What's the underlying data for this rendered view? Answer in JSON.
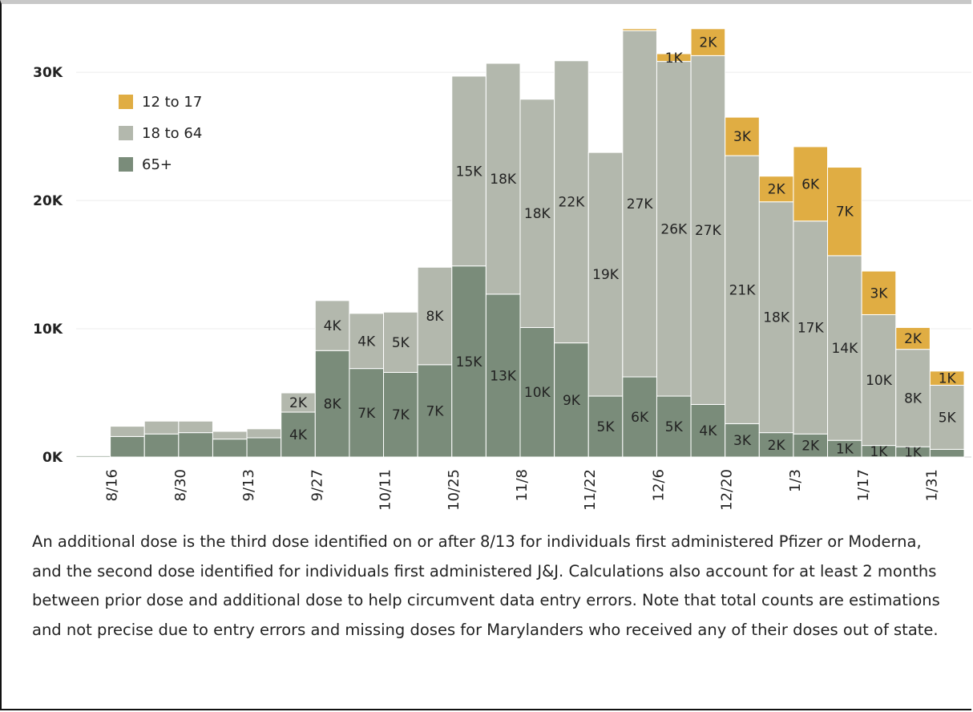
{
  "chart_data": {
    "type": "bar",
    "stacked": true,
    "categories": [
      null,
      "8/16",
      null,
      "8/30",
      null,
      "9/13",
      null,
      "9/27",
      null,
      "10/11",
      null,
      "10/25",
      null,
      "11/8",
      null,
      "11/22",
      null,
      "12/6",
      null,
      "12/20",
      null,
      "1/3",
      null,
      "1/17",
      null,
      "1/31"
    ],
    "series": [
      {
        "name": "12 to 17",
        "color": "#e0ad43",
        "values": [
          null,
          null,
          null,
          null,
          null,
          null,
          null,
          null,
          null,
          null,
          null,
          null,
          null,
          null,
          null,
          null,
          150,
          600,
          2100,
          3000,
          2000,
          5800,
          6900,
          3400,
          1700,
          1100
        ],
        "value_labels": [
          null,
          null,
          null,
          null,
          null,
          null,
          null,
          null,
          null,
          null,
          null,
          null,
          null,
          null,
          null,
          null,
          null,
          "1K",
          "2K",
          "3K",
          "2K",
          "6K",
          "7K",
          "3K",
          "2K",
          "1K"
        ]
      },
      {
        "name": "18 to 64",
        "color": "#b3b8ad",
        "values": [
          null,
          800,
          1000,
          900,
          600,
          700,
          1500,
          3900,
          4300,
          4700,
          7600,
          14800,
          18000,
          17800,
          22000,
          19000,
          27000,
          26100,
          27200,
          20900,
          18000,
          16600,
          14400,
          10200,
          7600,
          5000
        ],
        "value_labels": [
          null,
          null,
          null,
          null,
          null,
          null,
          "2K",
          "4K",
          "4K",
          "5K",
          "8K",
          "15K",
          "18K",
          "18K",
          "22K",
          "19K",
          "27K",
          "26K",
          "27K",
          "21K",
          "18K",
          "17K",
          "14K",
          "10K",
          "8K",
          "5K"
        ]
      },
      {
        "name": "65+",
        "color": "#7a8c7a",
        "values": [
          100,
          1600,
          1800,
          1900,
          1400,
          1500,
          3500,
          8300,
          6900,
          6600,
          7200,
          14900,
          12700,
          10100,
          8900,
          4750,
          6250,
          4750,
          4100,
          2600,
          1900,
          1800,
          1300,
          900,
          800,
          600
        ],
        "value_labels": [
          null,
          null,
          null,
          null,
          null,
          null,
          "4K",
          "8K",
          "7K",
          "7K",
          "7K",
          "15K",
          "13K",
          "10K",
          "9K",
          "5K",
          "6K",
          "5K",
          "4K",
          "3K",
          "2K",
          "2K",
          "1K",
          "1K",
          "1K",
          null
        ]
      }
    ],
    "ylim": [
      0,
      34700
    ],
    "yticks": [
      {
        "value": 0,
        "label": "0K"
      },
      {
        "value": 10000,
        "label": "10K"
      },
      {
        "value": 20000,
        "label": "20K"
      },
      {
        "value": 30000,
        "label": "30K"
      }
    ],
    "grid": true,
    "legend": "top-left",
    "note": "An additional dose is the third dose identified on or after 8/13 for individuals first administered Pfizer or Moderna, and the second dose identified for individuals first administered J&J. Calculations also account for at least 2 months between prior dose and additional dose to help circumvent data entry errors. Note that total counts are estimations and not precise due to entry errors and missing doses for Marylanders who received any of their doses out of state."
  }
}
